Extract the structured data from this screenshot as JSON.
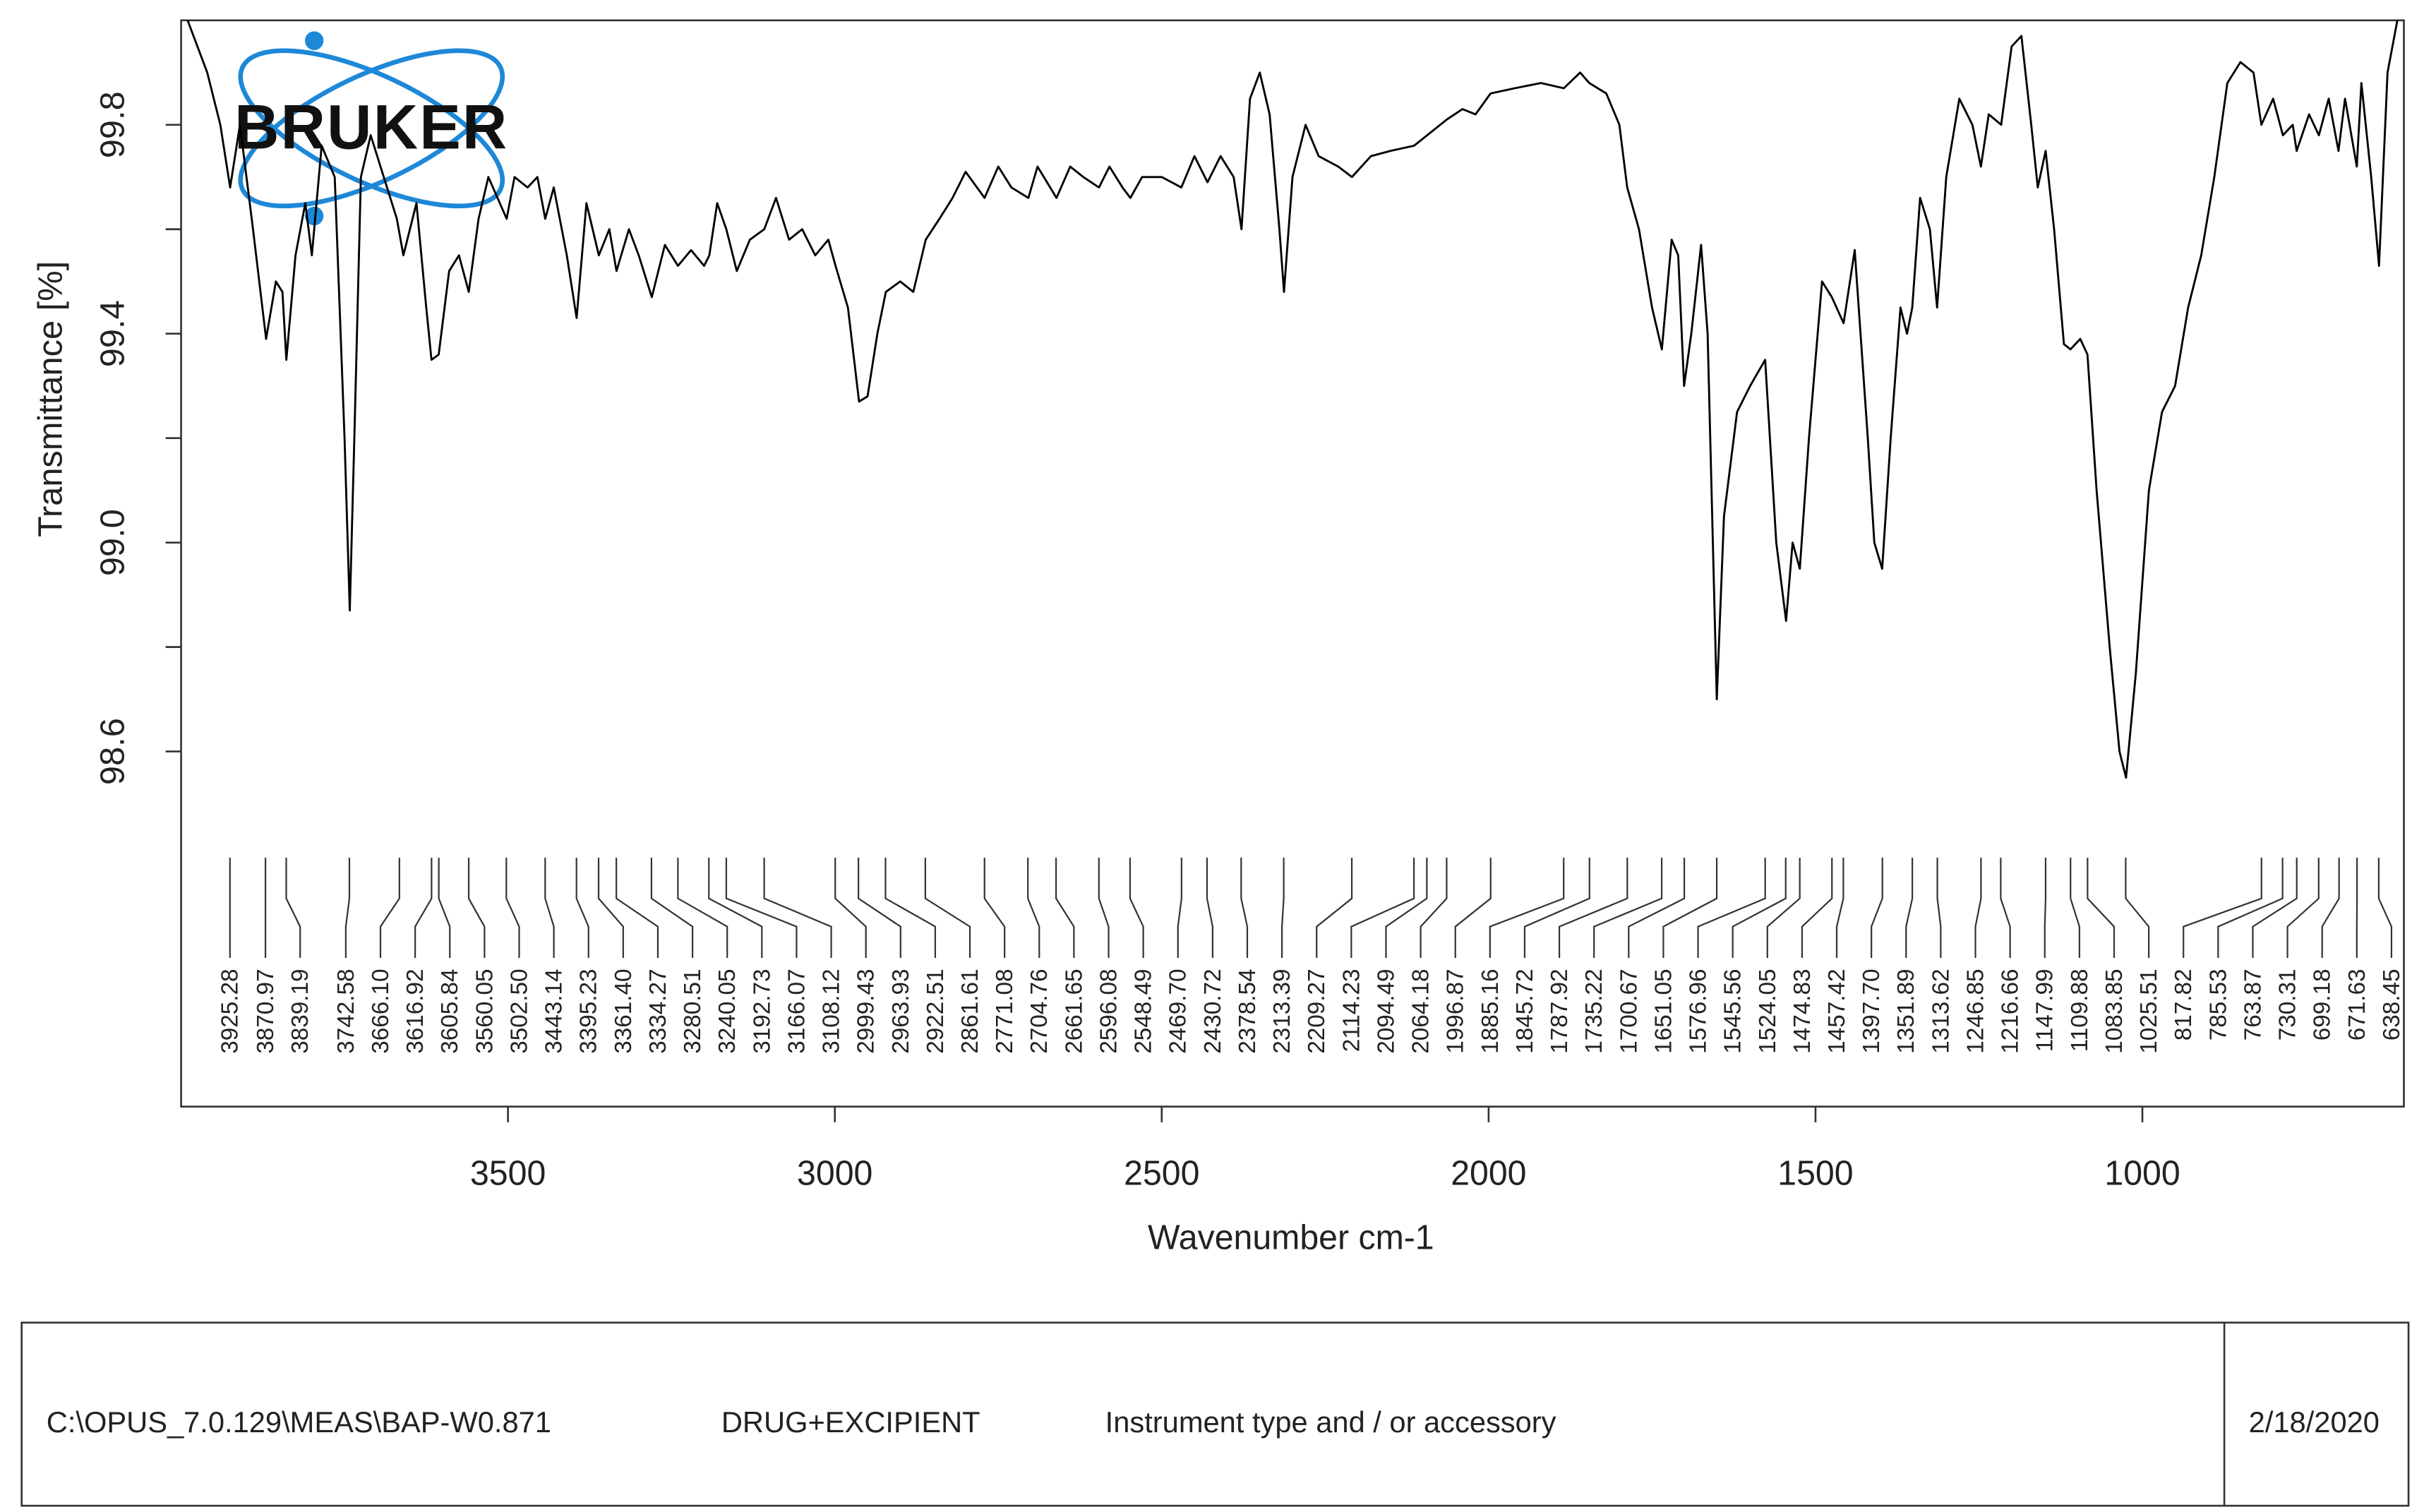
{
  "chart_data": {
    "type": "line",
    "logo": "BRUKER",
    "ylabel": "Transmittance [%]",
    "xlabel": "Wavenumber cm-1",
    "color": "#000000",
    "xlim": [
      4000,
      600
    ],
    "ylim": [
      97.92,
      100.0
    ],
    "xticks": [
      3500,
      3000,
      2500,
      2000,
      1500,
      1000
    ],
    "yticks": [
      {
        "value": 99.8,
        "label": "99.8"
      },
      {
        "value": 99.4,
        "label": "99.4"
      },
      {
        "value": 99,
        "label": "99.0"
      },
      {
        "value": 98.6,
        "label": "98.6"
      }
    ],
    "yminor": [
      99.6,
      99.2,
      98.8
    ],
    "x": [
      3990,
      3960,
      3940,
      3925,
      3910,
      3890,
      3870,
      3855,
      3845,
      3839,
      3825,
      3810,
      3800,
      3785,
      3765,
      3750,
      3742,
      3735,
      3725,
      3710,
      3690,
      3670,
      3660,
      3640,
      3625,
      3617,
      3606,
      3590,
      3575,
      3560,
      3545,
      3530,
      3502,
      3490,
      3470,
      3455,
      3443,
      3430,
      3410,
      3395,
      3380,
      3361,
      3345,
      3334,
      3315,
      3300,
      3280,
      3260,
      3240,
      3220,
      3200,
      3192,
      3180,
      3166,
      3150,
      3130,
      3108,
      3090,
      3070,
      3050,
      3030,
      3010,
      2999,
      2980,
      2963,
      2950,
      2935,
      2922,
      2900,
      2880,
      2861,
      2840,
      2820,
      2800,
      2771,
      2750,
      2730,
      2704,
      2690,
      2661,
      2640,
      2620,
      2596,
      2580,
      2560,
      2548,
      2530,
      2500,
      2470,
      2450,
      2430,
      2410,
      2390,
      2378,
      2365,
      2350,
      2335,
      2320,
      2313,
      2300,
      2280,
      2260,
      2230,
      2209,
      2180,
      2150,
      2114,
      2094,
      2064,
      2040,
      2020,
      1997,
      1960,
      1920,
      1885,
      1860,
      1846,
      1820,
      1800,
      1788,
      1770,
      1750,
      1735,
      1720,
      1710,
      1701,
      1690,
      1675,
      1665,
      1651,
      1640,
      1620,
      1600,
      1577,
      1560,
      1545,
      1535,
      1524,
      1510,
      1490,
      1475,
      1457,
      1440,
      1420,
      1410,
      1398,
      1385,
      1370,
      1360,
      1352,
      1340,
      1325,
      1314,
      1300,
      1280,
      1260,
      1247,
      1235,
      1216,
      1200,
      1185,
      1170,
      1160,
      1148,
      1135,
      1120,
      1110,
      1095,
      1084,
      1070,
      1050,
      1035,
      1025,
      1010,
      990,
      970,
      950,
      930,
      910,
      890,
      870,
      850,
      830,
      818,
      800,
      785,
      770,
      764,
      745,
      730,
      715,
      700,
      690,
      672,
      665,
      650,
      638,
      625,
      610
    ],
    "values": [
      100.0,
      99.9,
      99.8,
      99.68,
      99.8,
      99.6,
      99.39,
      99.5,
      99.48,
      99.35,
      99.55,
      99.65,
      99.55,
      99.76,
      99.7,
      99.2,
      98.87,
      99.2,
      99.7,
      99.78,
      99.7,
      99.62,
      99.55,
      99.65,
      99.45,
      99.35,
      99.36,
      99.52,
      99.55,
      99.48,
      99.62,
      99.7,
      99.62,
      99.7,
      99.68,
      99.7,
      99.62,
      99.68,
      99.55,
      99.43,
      99.65,
      99.55,
      99.6,
      99.52,
      99.6,
      99.55,
      99.47,
      99.57,
      99.53,
      99.56,
      99.53,
      99.55,
      99.65,
      99.6,
      99.52,
      99.58,
      99.6,
      99.66,
      99.58,
      99.6,
      99.55,
      99.58,
      99.53,
      99.45,
      99.27,
      99.28,
      99.4,
      99.48,
      99.5,
      99.48,
      99.58,
      99.62,
      99.66,
      99.71,
      99.66,
      99.72,
      99.68,
      99.66,
      99.72,
      99.66,
      99.72,
      99.7,
      99.68,
      99.72,
      99.68,
      99.66,
      99.7,
      99.7,
      99.68,
      99.74,
      99.69,
      99.74,
      99.7,
      99.6,
      99.85,
      99.9,
      99.82,
      99.6,
      99.48,
      99.7,
      99.8,
      99.74,
      99.72,
      99.7,
      99.74,
      99.75,
      99.76,
      99.78,
      99.81,
      99.83,
      99.82,
      99.86,
      99.87,
      99.88,
      99.87,
      99.9,
      99.88,
      99.86,
      99.8,
      99.68,
      99.6,
      99.45,
      99.37,
      99.58,
      99.55,
      99.3,
      99.4,
      99.57,
      99.4,
      98.7,
      99.05,
      99.25,
      99.3,
      99.35,
      99.0,
      98.85,
      99.0,
      98.95,
      99.2,
      99.5,
      99.47,
      99.42,
      99.56,
      99.2,
      99.0,
      98.95,
      99.2,
      99.45,
      99.4,
      99.45,
      99.66,
      99.6,
      99.45,
      99.7,
      99.85,
      99.8,
      99.72,
      99.82,
      99.8,
      99.95,
      99.97,
      99.8,
      99.68,
      99.75,
      99.6,
      99.38,
      99.37,
      99.39,
      99.36,
      99.1,
      98.8,
      98.6,
      98.55,
      98.75,
      99.1,
      99.25,
      99.3,
      99.45,
      99.55,
      99.7,
      99.88,
      99.92,
      99.9,
      99.8,
      99.85,
      99.78,
      99.8,
      99.75,
      99.82,
      99.78,
      99.85,
      99.75,
      99.85,
      99.72,
      99.88,
      99.7,
      99.53,
      99.9,
      100.0
    ],
    "peaks": [
      3925.28,
      3870.97,
      3839.19,
      3742.58,
      {
        "value": 3666.1,
        "label": "3666.10"
      },
      3616.92,
      3605.84,
      3560.05,
      {
        "value": 3502.5,
        "label": "3502.50"
      },
      3443.14,
      3395.23,
      {
        "value": 3361.4,
        "label": "3361.40"
      },
      3334.27,
      3280.51,
      3240.05,
      3192.73,
      3166.07,
      3108.12,
      2999.43,
      2963.93,
      2922.51,
      2861.61,
      2771.08,
      2704.76,
      2661.65,
      2596.08,
      2548.49,
      {
        "value": 2469.7,
        "label": "2469.70"
      },
      2430.72,
      2378.54,
      2313.39,
      2209.27,
      2114.23,
      2094.49,
      2064.18,
      1996.87,
      1885.16,
      1845.72,
      1787.92,
      1735.22,
      1700.67,
      1651.05,
      1576.96,
      1545.56,
      1524.05,
      1474.83,
      1457.42,
      {
        "value": 1397.7,
        "label": "1397.70"
      },
      1351.89,
      1313.62,
      1246.85,
      1216.66,
      1147.99,
      1109.88,
      1083.85,
      1025.51,
      817.82,
      785.53,
      763.87,
      730.31,
      699.18,
      671.63,
      638.45
    ]
  },
  "footer": {
    "path": "C:\\OPUS_7.0.129\\MEAS\\BAP-W0.871",
    "sample": "DRUG+EXCIPIENT",
    "instrument": "Instrument type and / or accessory",
    "date": "2/18/2020"
  }
}
